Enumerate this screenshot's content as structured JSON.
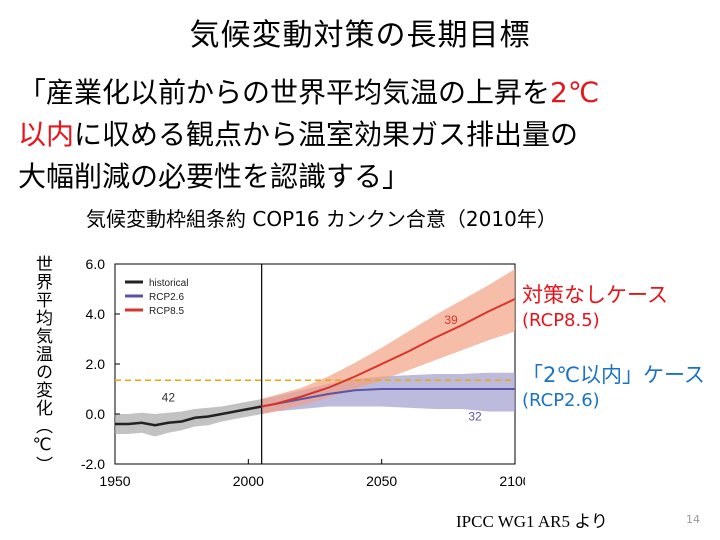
{
  "slide": {
    "title": "気候変動対策の長期目標",
    "quote_line1_pre": "「産業化以前からの世界平均気温の上昇を",
    "quote_line1_red": "2℃",
    "quote_line2_red": "以内",
    "quote_line2_rest": "に収める観点から温室効果ガス排出量の",
    "quote_line3": "大幅削減の必要性を認識する」",
    "subtitle": "気候変動枠組条約 COP16 カンクン合意（2010年）",
    "y_axis_label": "世界平均気温の変化（℃）",
    "annotation_red_1": "対策なしケース",
    "annotation_red_2": "(RCP8.5)",
    "annotation_blue_1": "「2℃以内」ケース",
    "annotation_blue_2": "(RCP2.6)",
    "source": "IPCC WG1 AR5 より",
    "page_number": "14"
  },
  "colors": {
    "accent_red": "#e8141b",
    "accent_blue": "#1a73c4",
    "historical": "#222222",
    "rcp26": "#5a55a8",
    "rcp85": "#d9342b",
    "rcp85_band": "#f2a184",
    "rcp26_band": "#9f9ccf",
    "hist_band": "#a8a8a8",
    "threshold": "#f0a800"
  },
  "chart_data": {
    "type": "line",
    "xlim": [
      1950,
      2100
    ],
    "ylim": [
      -2.0,
      6.0
    ],
    "x_ticks": [
      1950,
      2000,
      2050,
      2100
    ],
    "y_ticks": [
      -2.0,
      0.0,
      2.0,
      4.0,
      6.0
    ],
    "y_tick_labels": [
      "-2.0",
      "0.0",
      "2.0",
      "4.0",
      "6.0"
    ],
    "x_tick_labels": [
      "1950",
      "2000",
      "2050",
      "2100"
    ],
    "divider_year": 2005,
    "threshold_y": 1.35,
    "legend_position": "top-left",
    "series": [
      {
        "name": "historical",
        "x": [
          1950,
          1955,
          1960,
          1965,
          1970,
          1975,
          1980,
          1985,
          1990,
          1995,
          2000,
          2005
        ],
        "y": [
          -0.4,
          -0.4,
          -0.35,
          -0.45,
          -0.35,
          -0.3,
          -0.15,
          -0.1,
          0.0,
          0.1,
          0.2,
          0.3
        ],
        "lower": [
          -0.8,
          -0.8,
          -0.75,
          -0.9,
          -0.75,
          -0.65,
          -0.5,
          -0.45,
          -0.3,
          -0.2,
          -0.1,
          0.0
        ],
        "upper": [
          0.0,
          0.0,
          0.05,
          0.0,
          0.05,
          0.1,
          0.2,
          0.25,
          0.3,
          0.4,
          0.5,
          0.6
        ],
        "count_label": "42"
      },
      {
        "name": "RCP2.6",
        "x": [
          2005,
          2010,
          2020,
          2030,
          2040,
          2050,
          2060,
          2070,
          2080,
          2090,
          2100
        ],
        "y": [
          0.3,
          0.4,
          0.6,
          0.8,
          0.95,
          1.0,
          1.0,
          1.0,
          1.0,
          1.0,
          1.0
        ],
        "lower": [
          0.0,
          0.1,
          0.2,
          0.3,
          0.3,
          0.3,
          0.25,
          0.2,
          0.2,
          0.1,
          0.1
        ],
        "upper": [
          0.6,
          0.7,
          0.95,
          1.2,
          1.4,
          1.5,
          1.55,
          1.6,
          1.6,
          1.65,
          1.65
        ],
        "count_label": "32"
      },
      {
        "name": "RCP8.5",
        "x": [
          2005,
          2010,
          2020,
          2030,
          2040,
          2050,
          2060,
          2070,
          2080,
          2090,
          2100
        ],
        "y": [
          0.3,
          0.4,
          0.7,
          1.05,
          1.5,
          2.0,
          2.5,
          3.05,
          3.55,
          4.1,
          4.6
        ],
        "lower": [
          0.0,
          0.1,
          0.35,
          0.65,
          1.0,
          1.35,
          1.75,
          2.15,
          2.55,
          2.95,
          3.3
        ],
        "upper": [
          0.6,
          0.75,
          1.05,
          1.5,
          2.05,
          2.65,
          3.3,
          3.95,
          4.55,
          5.15,
          5.8
        ],
        "count_label": "39"
      }
    ]
  }
}
